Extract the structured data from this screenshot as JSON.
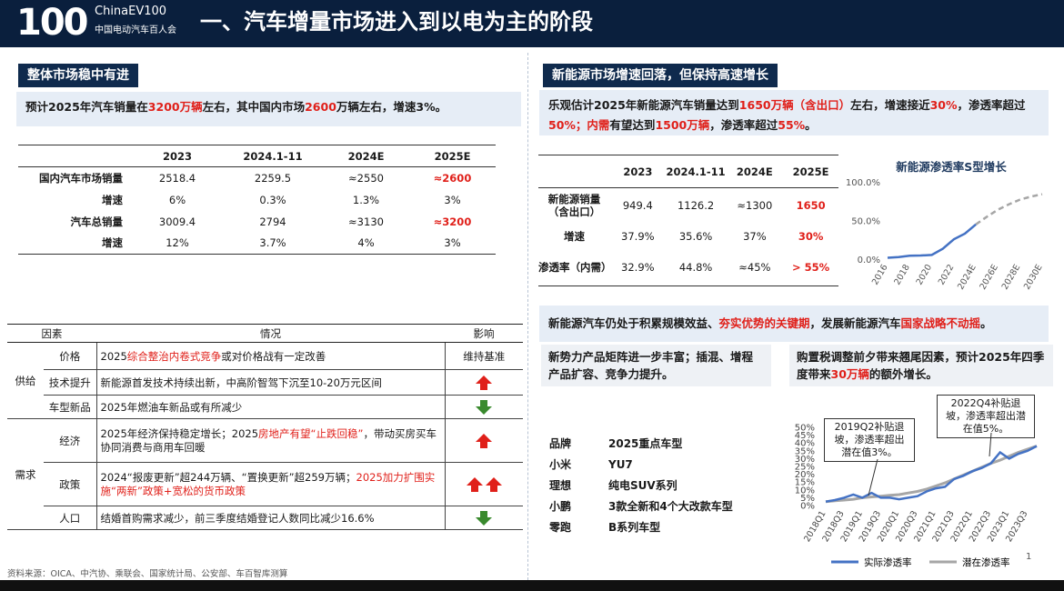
{
  "header": {
    "logo_main": "100",
    "logo_brand": "ChinaEV100",
    "logo_sub": "中国电动汽车百人会",
    "title": "一、汽车增量市场进入到以电为主的阶段",
    "bg_color": "#0a1f3d"
  },
  "left": {
    "tag": "整体市场稳中有进",
    "summary": {
      "p1": "预计2025年汽车销量在",
      "h1": "3200万辆",
      "p2": "左右，其中国内市场",
      "h2": "2600",
      "p3": "万辆左右，增速3%。"
    },
    "table": {
      "headers": [
        "2023",
        "2024.1-11",
        "2024E",
        "2025E"
      ],
      "rows": [
        {
          "label": "国内汽车市场销量",
          "values": [
            "2518.4",
            "2259.5",
            "≈2550",
            "≈2600"
          ]
        },
        {
          "label": "增速",
          "values": [
            "6%",
            "0.3%",
            "1.3%",
            "3%"
          ]
        },
        {
          "label": "汽车总销量",
          "values": [
            "3009.4",
            "2794",
            "≈3130",
            "≈3200"
          ]
        },
        {
          "label": "增速",
          "values": [
            "12%",
            "3.7%",
            "4%",
            "3%"
          ]
        }
      ]
    },
    "factors": {
      "headers": [
        "因素",
        "情况",
        "影响"
      ],
      "group_supply": "供给",
      "group_demand": "需求",
      "rows": [
        {
          "name": "价格",
          "text_a": "2025",
          "text_red": "综合整治内卷式竞争",
          "text_b": "或对价格战有一定改善",
          "impact": "维持基准"
        },
        {
          "name": "技术提升",
          "text_a": "新能源首发技术持续出新，中高阶智驾下沉至10-20万元区间",
          "impact_icon": "red-up-arrow-icon"
        },
        {
          "name": "车型新品",
          "text_a": "2025年燃油车新品或有所减少",
          "impact_icon": "green-down-arrow-icon"
        },
        {
          "name": "经济",
          "text_a": "2025年经济保持稳定增长；2025",
          "text_red": "房地产有望“止跌回稳”",
          "text_b": "，带动买房买车协同消费与商用车回暖",
          "impact_icon": "red-up-arrow-icon"
        },
        {
          "name": "政策",
          "text_a": "2024“报废更新”超244万辆、“置换更新”超259万辆；",
          "text_red": "2025加力扩围实施“两新”政策+宽松的货币政策",
          "impact_icon": "double-red-up-arrow-icon"
        },
        {
          "name": "人口",
          "text_a": "结婚首购需求减少，前三季度结婚登记人数同比减少16.6%",
          "impact_icon": "green-down-arrow-icon"
        }
      ]
    },
    "footer": "资料来源：OICA、中汽协、乘联会、国家统计局、公安部、车百智库测算"
  },
  "right": {
    "tag": "新能源市场增速回落，但保持高速增长",
    "summary": {
      "p1": "乐观估计2025年新能源汽车销量达到",
      "h1": "1650万辆（含出口）",
      "p2": "左右，增速接近",
      "h2": "30%",
      "p3": "，渗透率超过",
      "h3": "50%；内需",
      "p4": "有望达到",
      "h4": "1500万辆",
      "p5": "，渗透率超过",
      "h5": "55%",
      "p6": "。"
    },
    "table": {
      "headers": [
        "2023",
        "2024.1-11",
        "2024E",
        "2025E"
      ],
      "rows": [
        {
          "label": "新能源销量（含出口）",
          "values": [
            "949.4",
            "1126.2",
            "≈1300",
            "1650"
          ]
        },
        {
          "label": "增速",
          "values": [
            "37.9%",
            "35.6%",
            "37%",
            "30%"
          ]
        },
        {
          "label": "渗透率（内需）",
          "values": [
            "32.9%",
            "44.8%",
            "≈45%",
            "> 55%"
          ]
        }
      ]
    },
    "statement": {
      "p1": "新能源汽车仍处于积累规模效益、",
      "h1": "夯实优势的关键期",
      "p2": "，发展新能源汽车",
      "h2": "国家战略不动摇",
      "p3": "。"
    },
    "box_left": "新势力产品矩阵进一步丰富；插混、增程产品扩容、竞争力提升。",
    "box_right": {
      "p1": "购置税调整前夕带来翘尾因素，预计2025年四季度带来",
      "h1": "30万辆",
      "p2": "的额外增长。"
    },
    "models": {
      "header": [
        "品牌",
        "2025重点车型"
      ],
      "rows": [
        [
          "小米",
          "YU7"
        ],
        [
          "理想",
          "纯电SUV系列"
        ],
        [
          "小鹏",
          "3款全新和4个大改款车型"
        ],
        [
          "零跑",
          "B系列车型"
        ]
      ]
    },
    "page_number": "1"
  },
  "chart_data": [
    {
      "type": "line",
      "title": "新能源渗透率S型增长",
      "x": [
        "2016",
        "2017",
        "2018",
        "2019",
        "2020",
        "2021",
        "2022",
        "2023",
        "2024E",
        "2025E",
        "2026E",
        "2027E",
        "2028E",
        "2029E",
        "2030E"
      ],
      "x_tick_labels": [
        "2016",
        "2018",
        "2020",
        "2022",
        "2024E",
        "2026E",
        "2028E",
        "2030E"
      ],
      "series": [
        {
          "values": [
            1.8,
            2.7,
            4.5,
            4.7,
            5.4,
            13.4,
            25.6,
            32.9,
            45,
            null,
            null,
            null,
            null,
            null,
            null
          ],
          "color": "#4472c4",
          "style": "solid"
        },
        {
          "values": [
            null,
            null,
            null,
            null,
            null,
            null,
            null,
            null,
            45,
            55,
            64,
            71,
            77,
            81,
            84
          ],
          "color": "#a6a6a6",
          "style": "dashed"
        }
      ],
      "y_ticks": [
        "0.0%",
        "50.0%",
        "100.0%"
      ],
      "ylim": [
        0,
        100
      ]
    },
    {
      "type": "line",
      "x": [
        "2018Q1",
        "2018Q2",
        "2018Q3",
        "2018Q4",
        "2019Q1",
        "2019Q2",
        "2019Q3",
        "2019Q4",
        "2020Q1",
        "2020Q2",
        "2020Q3",
        "2020Q4",
        "2021Q1",
        "2021Q2",
        "2021Q3",
        "2021Q4",
        "2022Q1",
        "2022Q2",
        "2022Q3",
        "2022Q4",
        "2023Q1",
        "2023Q2",
        "2023Q3",
        "2023Q4"
      ],
      "x_tick_labels": [
        "2018Q1",
        "2018Q3",
        "2019Q1",
        "2019Q3",
        "2020Q1",
        "2020Q3",
        "2021Q1",
        "2021Q3",
        "2022Q1",
        "2022Q3",
        "2023Q1",
        "2023Q3"
      ],
      "series": [
        {
          "name": "实际渗透率",
          "color": "#4472c4",
          "values": [
            2.5,
            3.5,
            5,
            7,
            5,
            8,
            5,
            5,
            4,
            5,
            6,
            9,
            11,
            12,
            17,
            19,
            22,
            24,
            27,
            34,
            30,
            33,
            35,
            38
          ]
        },
        {
          "name": "潜在渗透率",
          "color": "#a6a6a6",
          "values": [
            2.5,
            3,
            3.5,
            4,
            5,
            5.5,
            6,
            6.5,
            7,
            8,
            9,
            10.5,
            12.5,
            14.5,
            17,
            19.5,
            22,
            24.5,
            27,
            29,
            31.5,
            34,
            36,
            38
          ]
        }
      ],
      "y_ticks": [
        "0%",
        "5%",
        "10%",
        "15%",
        "20%",
        "25%",
        "30%",
        "35%",
        "40%",
        "45%",
        "50%"
      ],
      "ylim": [
        0,
        50
      ],
      "legend": "bottom",
      "annotations": [
        "2019Q2补贴退坡，渗透率超出潜在值3%。",
        "2022Q4补贴退坡，渗透率超出潜在值5%。"
      ]
    }
  ]
}
